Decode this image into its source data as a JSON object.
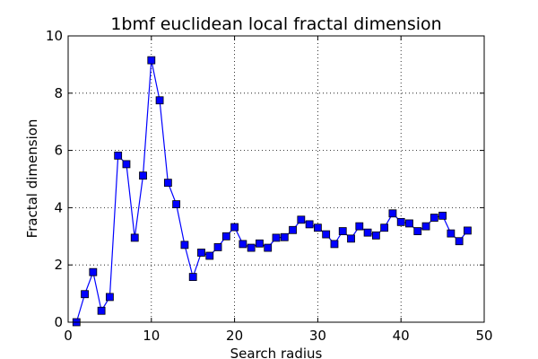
{
  "chart_data": {
    "type": "line",
    "title": "1bmf euclidean local fractal dimension",
    "xlabel": "Search radius",
    "ylabel": "Fractal dimension",
    "xlim": [
      0,
      50
    ],
    "ylim": [
      0,
      10
    ],
    "xticks": [
      0,
      10,
      20,
      30,
      40,
      50
    ],
    "yticks": [
      0,
      2,
      4,
      6,
      8,
      10
    ],
    "grid": true,
    "line_color": "#0000ff",
    "marker": "square",
    "series": [
      {
        "x": [
          1,
          2,
          3,
          4,
          5,
          6,
          7,
          8,
          9,
          10,
          11,
          12,
          13,
          14,
          15,
          16,
          17,
          18,
          19,
          20,
          21,
          22,
          23,
          24,
          25,
          26,
          27,
          28,
          29,
          30,
          31,
          32,
          33,
          34,
          35,
          36,
          37,
          38,
          39,
          40,
          41,
          42,
          43,
          44,
          45,
          46,
          47,
          48
        ],
        "y": [
          0.0,
          0.98,
          1.75,
          0.4,
          0.88,
          5.82,
          5.52,
          2.95,
          5.12,
          9.15,
          7.75,
          4.87,
          4.12,
          2.7,
          1.58,
          2.43,
          2.32,
          2.62,
          3.0,
          3.32,
          2.73,
          2.6,
          2.75,
          2.6,
          2.95,
          2.97,
          3.22,
          3.58,
          3.42,
          3.3,
          3.07,
          2.73,
          3.18,
          2.92,
          3.35,
          3.13,
          3.03,
          3.3,
          3.8,
          3.5,
          3.45,
          3.18,
          3.35,
          3.65,
          3.72,
          3.1,
          2.83,
          3.2
        ]
      }
    ]
  }
}
